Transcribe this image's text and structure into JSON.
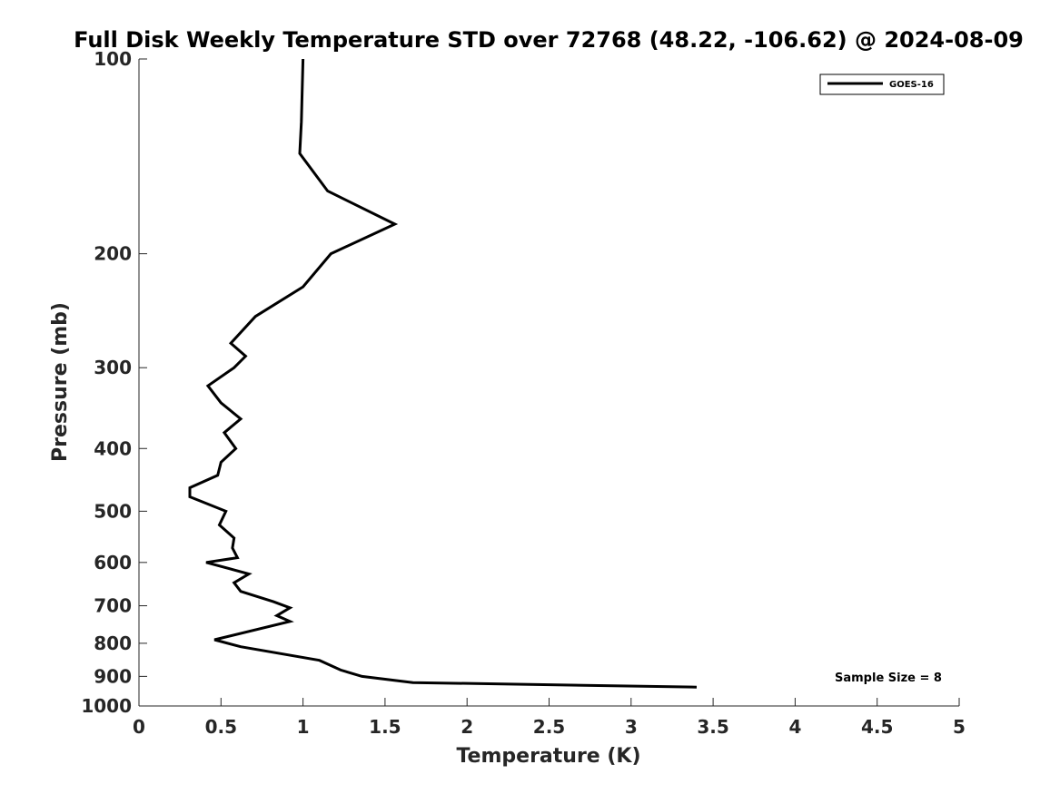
{
  "chart_data": {
    "type": "line",
    "title": "Full Disk Weekly Temperature STD over 72768 (48.22, -106.62) @ 2024-08-09",
    "xlabel": "Temperature (K)",
    "ylabel": "Pressure (mb)",
    "xlim": [
      0,
      5
    ],
    "ylim": [
      100,
      1000
    ],
    "y_scale": "log",
    "y_direction": "reversed",
    "x_ticks": [
      "0",
      "0.5",
      "1",
      "1.5",
      "2",
      "2.5",
      "3",
      "3.5",
      "4",
      "4.5",
      "5"
    ],
    "y_ticks": [
      "100",
      "200",
      "300",
      "400",
      "500",
      "600",
      "700",
      "800",
      "900",
      "1000"
    ],
    "legend_position": "top-right",
    "annotation": "Sample Size = 8",
    "series": [
      {
        "name": "GOES-16",
        "color": "#000000",
        "points": [
          {
            "x": 1.0,
            "y": 100
          },
          {
            "x": 0.99,
            "y": 125
          },
          {
            "x": 0.98,
            "y": 140
          },
          {
            "x": 1.15,
            "y": 160
          },
          {
            "x": 1.56,
            "y": 180
          },
          {
            "x": 1.17,
            "y": 200
          },
          {
            "x": 1.0,
            "y": 225
          },
          {
            "x": 0.71,
            "y": 250
          },
          {
            "x": 0.56,
            "y": 275
          },
          {
            "x": 0.65,
            "y": 288
          },
          {
            "x": 0.58,
            "y": 300
          },
          {
            "x": 0.42,
            "y": 320
          },
          {
            "x": 0.5,
            "y": 340
          },
          {
            "x": 0.62,
            "y": 360
          },
          {
            "x": 0.52,
            "y": 378
          },
          {
            "x": 0.59,
            "y": 400
          },
          {
            "x": 0.5,
            "y": 420
          },
          {
            "x": 0.48,
            "y": 440
          },
          {
            "x": 0.31,
            "y": 460
          },
          {
            "x": 0.31,
            "y": 475
          },
          {
            "x": 0.53,
            "y": 500
          },
          {
            "x": 0.49,
            "y": 525
          },
          {
            "x": 0.58,
            "y": 550
          },
          {
            "x": 0.57,
            "y": 570
          },
          {
            "x": 0.6,
            "y": 590
          },
          {
            "x": 0.41,
            "y": 600
          },
          {
            "x": 0.67,
            "y": 625
          },
          {
            "x": 0.58,
            "y": 645
          },
          {
            "x": 0.62,
            "y": 665
          },
          {
            "x": 0.82,
            "y": 690
          },
          {
            "x": 0.92,
            "y": 705
          },
          {
            "x": 0.84,
            "y": 725
          },
          {
            "x": 0.92,
            "y": 740
          },
          {
            "x": 0.46,
            "y": 790
          },
          {
            "x": 0.62,
            "y": 810
          },
          {
            "x": 1.1,
            "y": 850
          },
          {
            "x": 1.23,
            "y": 880
          },
          {
            "x": 1.36,
            "y": 900
          },
          {
            "x": 1.67,
            "y": 920
          },
          {
            "x": 3.4,
            "y": 935
          }
        ]
      }
    ]
  }
}
